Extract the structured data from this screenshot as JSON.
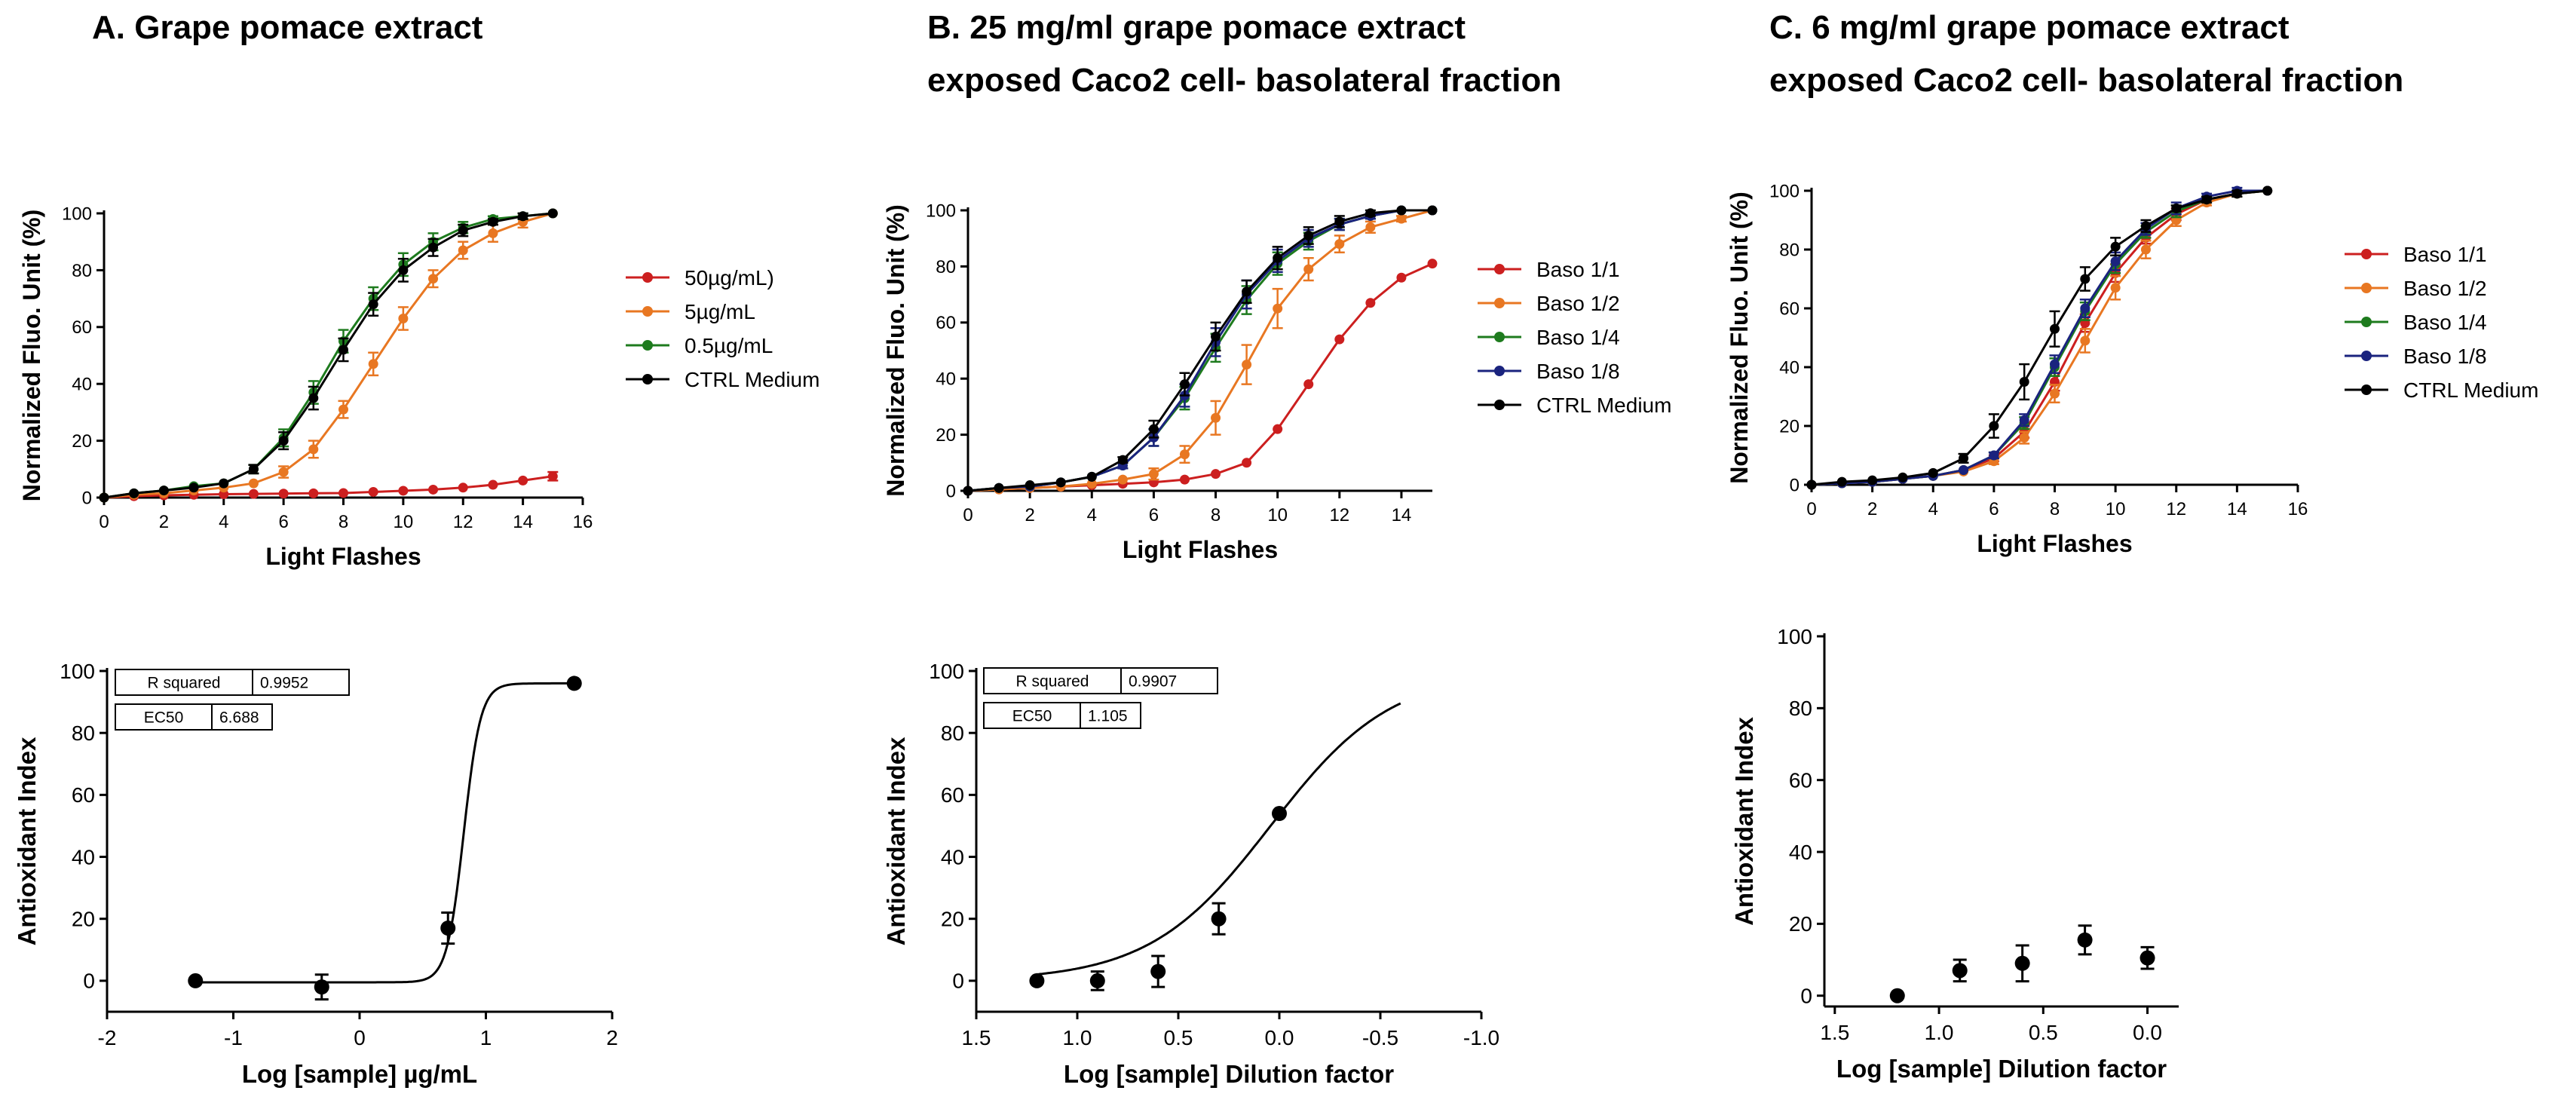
{
  "panels": {
    "A": {
      "title": "A. Grape pomace extract"
    },
    "B": {
      "title": "B. 25 mg/ml grape pomace extract\nexposed Caco2 cell- basolateral fraction"
    },
    "C": {
      "title": "C. 6 mg/ml grape pomace extract\nexposed Caco2 cell- basolateral fraction"
    }
  },
  "colors": {
    "red": "#cc1f1f",
    "orange": "#e87722",
    "green": "#1e7b1e",
    "blue": "#1a237e",
    "black": "#000000"
  },
  "chart_data": [
    {
      "id": "A-top",
      "type": "line",
      "xlabel": "Light Flashes",
      "ylabel": "Normalized Fluo. Unit (%)",
      "xlim": [
        0,
        16
      ],
      "ylim": [
        0,
        100
      ],
      "xticks": [
        0,
        2,
        4,
        6,
        8,
        10,
        12,
        14,
        16
      ],
      "yticks": [
        0,
        20,
        40,
        60,
        80,
        100
      ],
      "x": [
        0,
        1,
        2,
        3,
        4,
        5,
        6,
        7,
        8,
        9,
        10,
        11,
        12,
        13,
        14,
        15
      ],
      "series": [
        {
          "name": "50µg/mL)",
          "color": "red",
          "values": [
            0,
            0.5,
            0.8,
            1,
            1.2,
            1.3,
            1.4,
            1.5,
            1.6,
            2,
            2.4,
            2.8,
            3.5,
            4.5,
            6,
            7.5
          ],
          "err": [
            0,
            0,
            0,
            0,
            0,
            0,
            0,
            0,
            0,
            0,
            0,
            0,
            0,
            0,
            0,
            1.5
          ]
        },
        {
          "name": "5µg/mL",
          "color": "orange",
          "values": [
            0,
            1,
            1.5,
            2.5,
            3.5,
            5,
            9,
            17,
            31,
            47,
            63,
            77,
            87,
            93,
            97,
            100
          ],
          "err": [
            0,
            0,
            0,
            0,
            0,
            0,
            2,
            3,
            3,
            4,
            4,
            3,
            3,
            3,
            2,
            0
          ]
        },
        {
          "name": "0.5µg/mL",
          "color": "green",
          "values": [
            0,
            1.5,
            2.5,
            4,
            5,
            10,
            21,
            37,
            55,
            70,
            82,
            90,
            95,
            98,
            99,
            100
          ],
          "err": [
            0,
            0,
            0,
            0,
            0,
            1.5,
            3,
            4,
            4,
            4,
            4,
            3,
            2,
            1,
            1,
            0
          ]
        },
        {
          "name": "CTRL Medium",
          "color": "black",
          "values": [
            0,
            1.5,
            2.5,
            3.5,
            5,
            10,
            20,
            35,
            52,
            68,
            80,
            88,
            94,
            97,
            99,
            100
          ],
          "err": [
            0,
            0,
            0,
            0,
            0,
            1.5,
            3,
            4,
            4,
            4,
            4,
            3,
            2,
            1,
            1,
            0
          ]
        }
      ]
    },
    {
      "id": "A-bottom",
      "type": "scatter",
      "xlabel": "Log [sample] µg/mL",
      "ylabel": "Antioxidant Index",
      "xlim": [
        -2,
        2
      ],
      "ylim": [
        -10,
        100
      ],
      "xticks": [
        -2,
        -1,
        0,
        1,
        2
      ],
      "yticks": [
        0,
        20,
        40,
        60,
        80,
        100
      ],
      "points": [
        {
          "x": -1.3,
          "y": 0,
          "err": 0
        },
        {
          "x": -0.3,
          "y": -2,
          "err": 4
        },
        {
          "x": 0.7,
          "y": 17,
          "err": 5
        },
        {
          "x": 1.7,
          "y": 96,
          "err": 0
        }
      ],
      "fit": {
        "bottom": -0.5,
        "top": 96,
        "log_ec50": 0.825,
        "hill": 6.5,
        "from": -1.3,
        "to": 1.7
      },
      "stats": [
        [
          "R squared",
          "0.9952"
        ],
        [
          "EC50",
          "6.688"
        ]
      ]
    },
    {
      "id": "B-top",
      "type": "line",
      "xlabel": "Light Flashes",
      "ylabel": "Normalized Fluo. Unit (%)",
      "xlim": [
        0,
        15
      ],
      "ylim": [
        0,
        100
      ],
      "xticks": [
        0,
        2,
        4,
        6,
        8,
        10,
        12,
        14
      ],
      "yticks": [
        0,
        20,
        40,
        60,
        80,
        100
      ],
      "x": [
        0,
        1,
        2,
        3,
        4,
        5,
        6,
        7,
        8,
        9,
        10,
        11,
        12,
        13,
        14,
        15
      ],
      "series": [
        {
          "name": "Baso 1/1",
          "color": "red",
          "values": [
            0,
            0.5,
            1,
            1.5,
            2,
            2.5,
            3,
            4,
            6,
            10,
            22,
            38,
            54,
            67,
            76,
            81
          ],
          "err": [
            0,
            0,
            0,
            0,
            0,
            0,
            0,
            0,
            0,
            0,
            0,
            0,
            0,
            0,
            0,
            0
          ]
        },
        {
          "name": "Baso 1/2",
          "color": "orange",
          "values": [
            0,
            0.5,
            1,
            1.5,
            2.5,
            4,
            6,
            13,
            26,
            45,
            65,
            79,
            88,
            94,
            97,
            100
          ],
          "err": [
            0,
            0,
            0,
            0,
            0,
            0,
            2,
            3,
            6,
            7,
            7,
            4,
            3,
            2,
            1,
            0
          ]
        },
        {
          "name": "Baso 1/4",
          "color": "green",
          "values": [
            0,
            1,
            1.5,
            3,
            5,
            9,
            19,
            33,
            51,
            68,
            81,
            89,
            95,
            98,
            100,
            100
          ],
          "err": [
            0,
            0,
            0,
            0,
            0,
            1,
            3,
            4,
            5,
            5,
            4,
            3,
            2,
            1,
            0,
            0
          ]
        },
        {
          "name": "Baso 1/8",
          "color": "blue",
          "values": [
            0,
            1,
            1.5,
            3,
            5,
            9,
            19,
            34,
            53,
            70,
            82,
            90,
            95,
            98,
            100,
            100
          ],
          "err": [
            0,
            0,
            0,
            0,
            0,
            1,
            3,
            4,
            5,
            5,
            4,
            3,
            2,
            1,
            0,
            0
          ]
        },
        {
          "name": "CTRL Medium",
          "color": "black",
          "values": [
            0,
            1,
            2,
            3,
            5,
            11,
            22,
            38,
            55,
            71,
            83,
            91,
            96,
            99,
            100,
            100
          ],
          "err": [
            0,
            0,
            0,
            0,
            0,
            1,
            3,
            4,
            5,
            4,
            4,
            3,
            2,
            1,
            0,
            0
          ]
        }
      ]
    },
    {
      "id": "B-bottom",
      "type": "scatter",
      "xlabel": "Log [sample] Dilution factor",
      "ylabel": "Antioxidant Index",
      "xlim": [
        1.5,
        -1.0
      ],
      "ylim": [
        -10,
        100
      ],
      "xticks": [
        1.5,
        1.0,
        0.5,
        0.0,
        -0.5,
        -1.0
      ],
      "yticks": [
        0,
        20,
        40,
        60,
        80,
        100
      ],
      "points": [
        {
          "x": 1.2,
          "y": 0,
          "err": 0
        },
        {
          "x": 0.9,
          "y": 0,
          "err": 3
        },
        {
          "x": 0.6,
          "y": 3,
          "err": 5
        },
        {
          "x": 0.3,
          "y": 20,
          "err": 5
        },
        {
          "x": 0.0,
          "y": 54,
          "err": 0
        }
      ],
      "fit": {
        "bottom": 0,
        "top": 100,
        "log_ec50": 0.0433,
        "hill": 1.45,
        "from": 1.2,
        "to": -0.6
      },
      "stats": [
        [
          "R squared",
          "0.9907"
        ],
        [
          "EC50",
          "1.105"
        ]
      ]
    },
    {
      "id": "C-top",
      "type": "line",
      "xlabel": "Light Flashes",
      "ylabel": "Normalized Fluo. Unit (%)",
      "xlim": [
        0,
        16
      ],
      "ylim": [
        0,
        100
      ],
      "xticks": [
        0,
        2,
        4,
        6,
        8,
        10,
        12,
        14,
        16
      ],
      "yticks": [
        0,
        20,
        40,
        60,
        80,
        100
      ],
      "x": [
        0,
        1,
        2,
        3,
        4,
        5,
        6,
        7,
        8,
        9,
        10,
        11,
        12,
        13,
        14,
        15
      ],
      "series": [
        {
          "name": "Baso 1/1",
          "color": "red",
          "values": [
            0,
            0.5,
            1,
            2,
            3,
            5,
            9,
            18,
            35,
            55,
            72,
            84,
            92,
            97,
            99,
            100
          ],
          "err": [
            0,
            0,
            0,
            0,
            0,
            0,
            1,
            2,
            3,
            3,
            3,
            2,
            2,
            1,
            1,
            0
          ]
        },
        {
          "name": "Baso 1/2",
          "color": "orange",
          "values": [
            0,
            0.5,
            1,
            2,
            3,
            4.5,
            8,
            16,
            31,
            49,
            67,
            80,
            90,
            96,
            99,
            100
          ],
          "err": [
            0,
            0,
            0,
            0,
            0,
            0,
            1,
            2,
            3,
            4,
            4,
            3,
            2,
            1,
            1,
            0
          ]
        },
        {
          "name": "Baso 1/4",
          "color": "green",
          "values": [
            0,
            0.5,
            1,
            2,
            3,
            5,
            10,
            21,
            40,
            59,
            75,
            86,
            93,
            97,
            99,
            100
          ],
          "err": [
            0,
            0,
            0,
            0,
            0,
            0,
            1,
            2,
            3,
            3,
            3,
            2,
            2,
            1,
            1,
            0
          ]
        },
        {
          "name": "Baso 1/8",
          "color": "blue",
          "values": [
            0,
            0.5,
            1,
            2,
            3,
            5,
            10,
            22,
            41,
            60,
            76,
            87,
            94,
            98,
            100,
            100
          ],
          "err": [
            0,
            0,
            0,
            0,
            0,
            0,
            1,
            2,
            3,
            3,
            3,
            2,
            2,
            1,
            1,
            0
          ]
        },
        {
          "name": "CTRL Medium",
          "color": "black",
          "values": [
            0,
            1,
            1.5,
            2.5,
            4,
            9,
            20,
            35,
            53,
            70,
            81,
            88,
            94,
            97,
            99,
            100
          ],
          "err": [
            0,
            0,
            0,
            0,
            0,
            1.5,
            4,
            6,
            6,
            4,
            3,
            2,
            1,
            1,
            1,
            0
          ]
        }
      ]
    },
    {
      "id": "C-bottom",
      "type": "scatter",
      "xlabel": "Log [sample] Dilution factor",
      "ylabel": "Antioxidant Index",
      "xlim": [
        1.55,
        -0.15
      ],
      "ylim": [
        -3,
        100
      ],
      "xticks": [
        1.5,
        1.0,
        0.5,
        0.0
      ],
      "yticks": [
        0,
        20,
        40,
        60,
        80,
        100
      ],
      "points": [
        {
          "x": 1.2,
          "y": 0,
          "err": 0
        },
        {
          "x": 0.9,
          "y": 7,
          "err": 3
        },
        {
          "x": 0.6,
          "y": 9,
          "err": 5
        },
        {
          "x": 0.3,
          "y": 15.5,
          "err": 4
        },
        {
          "x": 0.0,
          "y": 10.5,
          "err": 3
        }
      ]
    }
  ]
}
